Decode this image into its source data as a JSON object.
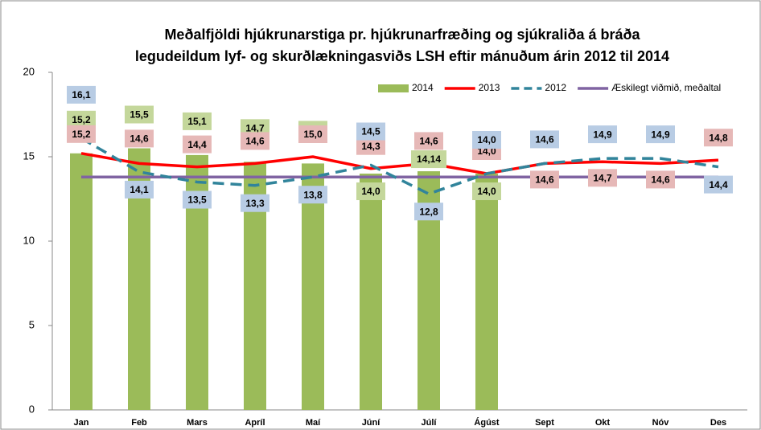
{
  "chart_data": {
    "type": "bar_line",
    "title": [
      "Meðalfjöldi hjúkrunarstiga pr. hjúkrunarfræðing og sjúkraliða á bráða",
      "legudeildum lyf- og skurðlækningasviðs LSH eftir mánuðum árin 2012 til 2014"
    ],
    "categories": [
      "Jan",
      "Feb",
      "Mars",
      "Apríl",
      "Maí",
      "Júní",
      "Júlí",
      "Ágúst",
      "Sept",
      "Okt",
      "Nóv",
      "Des"
    ],
    "ylim": [
      0,
      20
    ],
    "yticks": [
      0,
      5,
      10,
      15,
      20
    ],
    "series": [
      {
        "name": "2014",
        "type": "bar",
        "color": "#9bbb59",
        "label_color": "#c4d79b",
        "values": [
          15.2,
          15.5,
          15.1,
          14.7,
          14.6,
          14.0,
          14.14,
          14.0,
          null,
          null,
          null,
          null
        ],
        "value_labels": [
          "15,2",
          "15,5",
          "15,1",
          "14,7",
          "14,6",
          "14,0",
          "14,14",
          "14,0",
          null,
          null,
          null,
          null
        ]
      },
      {
        "name": "2013",
        "type": "line",
        "color": "#ff0000",
        "label_color": "#e6b8b7",
        "values": [
          15.2,
          14.6,
          14.4,
          14.6,
          15.0,
          14.3,
          14.6,
          14.0,
          14.6,
          14.7,
          14.6,
          14.8
        ],
        "value_labels": [
          "15,2",
          "14,6",
          "14,4",
          "14,6",
          "15,0",
          "14,3",
          "14,6",
          "14,0",
          "14,6",
          "14,7",
          "14,6",
          "14,8"
        ]
      },
      {
        "name": "2012",
        "type": "dashed",
        "color": "#31849b",
        "label_color": "#b8cce4",
        "values": [
          16.1,
          14.1,
          13.5,
          13.3,
          13.8,
          14.5,
          12.8,
          14.0,
          14.6,
          14.9,
          14.9,
          14.4
        ],
        "value_labels": [
          "16,1",
          "14,1",
          "13,5",
          "13,3",
          "13,8",
          "14,5",
          "12,8",
          "14,0",
          "14,6",
          "14,9",
          "14,9",
          "14,4"
        ]
      },
      {
        "name": "Æskilegt viðmið, meðaltal",
        "type": "line",
        "color": "#8064a2",
        "values": [
          13.8,
          13.8,
          13.8,
          13.8,
          13.8,
          13.8,
          13.8,
          13.8,
          13.8,
          13.8,
          13.8,
          13.8
        ]
      }
    ]
  }
}
